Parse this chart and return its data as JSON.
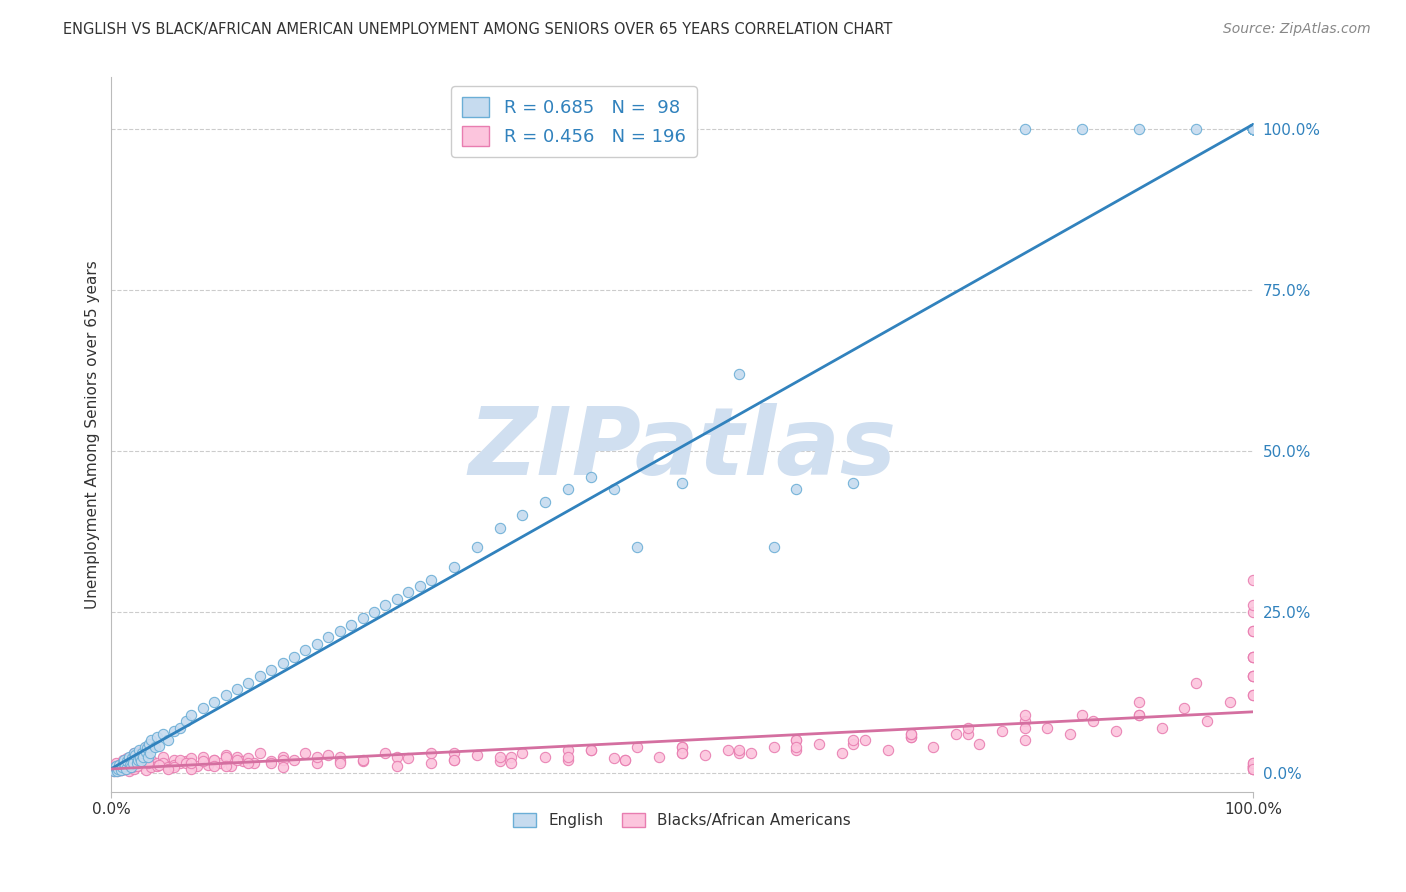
{
  "title": "ENGLISH VS BLACK/AFRICAN AMERICAN UNEMPLOYMENT AMONG SENIORS OVER 65 YEARS CORRELATION CHART",
  "source": "Source: ZipAtlas.com",
  "ylabel": "Unemployment Among Seniors over 65 years",
  "english_R": 0.685,
  "english_N": 98,
  "black_R": 0.456,
  "black_N": 196,
  "english_marker_face": "#c6dbef",
  "english_marker_edge": "#6baed6",
  "black_marker_face": "#fcc5dd",
  "black_marker_edge": "#e87db0",
  "trendline_english_color": "#3182bd",
  "trendline_black_color": "#d46fa0",
  "right_tick_color": "#3182bd",
  "watermark_color": "#d0dff0",
  "background_color": "#ffffff",
  "grid_color": "#cccccc",
  "title_color": "#333333",
  "source_color": "#888888",
  "label_color": "#333333",
  "legend_edge_color": "#cccccc",
  "xlim": [
    0,
    100
  ],
  "ylim": [
    -3,
    108
  ],
  "ytick_vals": [
    0,
    25,
    50,
    75,
    100
  ],
  "ytick_labels": [
    "0.0%",
    "25.0%",
    "50.0%",
    "75.0%",
    "100.0%"
  ],
  "xtick_vals": [
    0,
    100
  ],
  "xtick_labels": [
    "0.0%",
    "100.0%"
  ],
  "english_x": [
    0.1,
    0.2,
    0.3,
    0.4,
    0.5,
    0.6,
    0.7,
    0.8,
    0.9,
    1.0,
    1.1,
    1.2,
    1.3,
    1.4,
    1.5,
    1.6,
    1.7,
    1.8,
    1.9,
    2.0,
    2.1,
    2.2,
    2.3,
    2.4,
    2.5,
    2.6,
    2.7,
    2.8,
    2.9,
    3.0,
    3.1,
    3.2,
    3.3,
    3.4,
    3.5,
    3.8,
    4.0,
    4.2,
    4.5,
    5.0,
    5.5,
    6.0,
    6.5,
    7.0,
    8.0,
    9.0,
    10.0,
    11.0,
    12.0,
    13.0,
    14.0,
    15.0,
    16.0,
    17.0,
    18.0,
    19.0,
    20.0,
    21.0,
    22.0,
    23.0,
    24.0,
    25.0,
    26.0,
    27.0,
    28.0,
    30.0,
    32.0,
    34.0,
    36.0,
    38.0,
    40.0,
    42.0,
    44.0,
    46.0,
    50.0,
    55.0,
    58.0,
    60.0,
    65.0,
    80.0,
    85.0,
    90.0,
    95.0,
    100.0,
    100.0,
    100.0,
    100.0,
    100.0,
    100.0,
    100.0,
    100.0,
    100.0,
    100.0,
    100.0,
    100.0,
    100.0,
    100.0,
    100.0
  ],
  "english_y": [
    0.5,
    0.3,
    0.8,
    1.0,
    0.2,
    0.6,
    1.2,
    0.4,
    0.9,
    1.5,
    2.0,
    1.0,
    0.5,
    1.8,
    2.5,
    1.2,
    0.8,
    2.2,
    1.5,
    3.0,
    2.8,
    1.5,
    2.0,
    3.5,
    2.2,
    1.8,
    3.0,
    2.5,
    4.0,
    3.2,
    3.8,
    2.5,
    4.5,
    3.0,
    5.0,
    4.0,
    5.5,
    4.2,
    6.0,
    5.0,
    6.5,
    7.0,
    8.0,
    9.0,
    10.0,
    11.0,
    12.0,
    13.0,
    14.0,
    15.0,
    16.0,
    17.0,
    18.0,
    19.0,
    20.0,
    21.0,
    22.0,
    23.0,
    24.0,
    25.0,
    26.0,
    27.0,
    28.0,
    29.0,
    30.0,
    32.0,
    35.0,
    38.0,
    40.0,
    42.0,
    44.0,
    46.0,
    44.0,
    35.0,
    45.0,
    62.0,
    35.0,
    44.0,
    45.0,
    100.0,
    100.0,
    100.0,
    100.0,
    100.0,
    100.0,
    100.0,
    100.0,
    100.0,
    100.0,
    100.0,
    100.0,
    100.0,
    100.0,
    100.0,
    100.0,
    100.0,
    100.0,
    100.0
  ],
  "black_x": [
    0.1,
    0.2,
    0.3,
    0.4,
    0.5,
    0.6,
    0.7,
    0.8,
    0.9,
    1.0,
    1.1,
    1.2,
    1.3,
    1.4,
    1.5,
    1.6,
    1.7,
    1.8,
    1.9,
    2.0,
    2.1,
    2.2,
    2.3,
    2.4,
    2.5,
    2.6,
    2.7,
    2.8,
    2.9,
    3.0,
    3.5,
    4.0,
    4.5,
    5.0,
    5.5,
    6.0,
    6.5,
    7.0,
    7.5,
    8.0,
    8.5,
    9.0,
    9.5,
    10.0,
    10.5,
    11.0,
    11.5,
    12.0,
    12.5,
    13.0,
    14.0,
    15.0,
    16.0,
    17.0,
    18.0,
    19.0,
    20.0,
    22.0,
    24.0,
    26.0,
    28.0,
    30.0,
    32.0,
    34.0,
    36.0,
    38.0,
    40.0,
    42.0,
    44.0,
    46.0,
    48.0,
    50.0,
    52.0,
    54.0,
    56.0,
    58.0,
    60.0,
    62.0,
    64.0,
    66.0,
    68.0,
    70.0,
    72.0,
    74.0,
    76.0,
    78.0,
    80.0,
    82.0,
    84.0,
    86.0,
    88.0,
    90.0,
    92.0,
    94.0,
    96.0,
    98.0,
    100.0,
    100.0,
    100.0,
    100.0,
    0.3,
    0.5,
    0.7,
    1.0,
    1.5,
    2.0,
    2.5,
    3.0,
    3.5,
    4.0,
    4.5,
    5.0,
    5.5,
    6.0,
    6.5,
    7.0,
    8.0,
    9.0,
    10.0,
    12.0,
    15.0,
    20.0,
    25.0,
    30.0,
    35.0,
    40.0,
    45.0,
    50.0,
    55.0,
    60.0,
    65.0,
    70.0,
    75.0,
    80.0,
    85.0,
    90.0,
    95.0,
    100.0,
    100.0,
    100.0,
    0.2,
    0.4,
    0.6,
    0.8,
    1.2,
    1.8,
    2.2,
    3.2,
    4.2,
    5.5,
    7.0,
    9.0,
    11.0,
    14.0,
    18.0,
    22.0,
    28.0,
    34.0,
    42.0,
    50.0,
    60.0,
    70.0,
    80.0,
    90.0,
    100.0,
    100.0,
    100.0,
    100.0,
    100.0,
    100.0,
    100.0,
    100.0,
    100.0,
    100.0,
    100.0,
    100.0,
    100.0,
    100.0,
    100.0,
    100.0,
    5.0,
    10.0,
    15.0,
    20.0,
    25.0,
    30.0,
    35.0,
    40.0,
    45.0,
    50.0,
    55.0,
    60.0,
    65.0,
    70.0,
    75.0,
    80.0
  ],
  "black_y": [
    0.5,
    1.0,
    0.8,
    1.5,
    0.3,
    0.6,
    1.2,
    0.4,
    0.9,
    2.0,
    1.5,
    0.8,
    1.0,
    2.2,
    1.8,
    0.5,
    1.5,
    2.5,
    1.2,
    3.0,
    2.5,
    1.0,
    2.0,
    3.2,
    1.5,
    2.8,
    1.8,
    3.5,
    2.2,
    4.0,
    2.0,
    1.5,
    2.5,
    1.0,
    2.0,
    1.5,
    1.8,
    2.2,
    1.0,
    2.5,
    1.2,
    2.0,
    1.5,
    2.8,
    1.0,
    2.5,
    1.8,
    2.2,
    1.5,
    3.0,
    1.8,
    2.5,
    2.0,
    3.0,
    1.5,
    2.8,
    2.5,
    1.8,
    3.0,
    2.2,
    1.5,
    2.0,
    2.8,
    1.8,
    3.0,
    2.5,
    2.0,
    3.5,
    2.2,
    4.0,
    2.5,
    3.0,
    2.8,
    3.5,
    3.0,
    4.0,
    3.5,
    4.5,
    3.0,
    5.0,
    3.5,
    5.5,
    4.0,
    6.0,
    4.5,
    6.5,
    5.0,
    7.0,
    6.0,
    8.0,
    6.5,
    9.0,
    7.0,
    10.0,
    8.0,
    11.0,
    12.0,
    15.0,
    18.0,
    25.0,
    0.5,
    1.0,
    0.8,
    1.5,
    0.3,
    0.6,
    1.2,
    0.4,
    0.9,
    1.0,
    1.5,
    0.8,
    1.2,
    2.0,
    1.5,
    0.5,
    1.8,
    2.0,
    2.5,
    1.5,
    2.0,
    1.8,
    2.5,
    3.0,
    2.5,
    3.5,
    2.0,
    4.0,
    3.0,
    5.0,
    4.5,
    5.5,
    6.0,
    8.0,
    9.0,
    11.0,
    14.0,
    15.0,
    18.0,
    22.0,
    0.3,
    0.5,
    0.8,
    0.4,
    0.6,
    0.9,
    1.0,
    1.5,
    1.2,
    0.8,
    1.5,
    1.0,
    2.0,
    1.5,
    2.5,
    2.0,
    3.0,
    2.5,
    3.5,
    4.0,
    5.0,
    6.0,
    7.0,
    9.0,
    12.0,
    15.0,
    18.0,
    22.0,
    26.0,
    30.0,
    0.5,
    0.8,
    1.0,
    1.5,
    0.8,
    1.2,
    0.5,
    0.9,
    1.5,
    0.6,
    0.5,
    1.0,
    0.8,
    1.5,
    1.0,
    2.0,
    1.5,
    2.5,
    2.0,
    3.0,
    3.5,
    4.0,
    5.0,
    6.0,
    7.0,
    9.0
  ]
}
